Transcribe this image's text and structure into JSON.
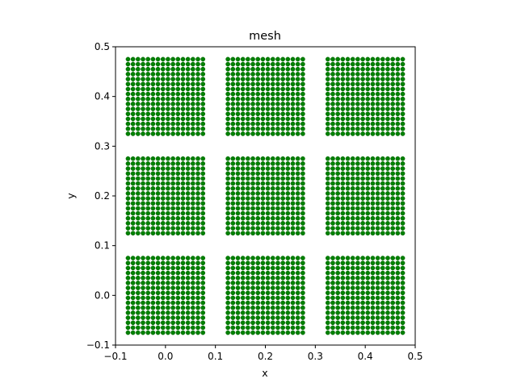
{
  "chart_data": {
    "type": "scatter",
    "title": "mesh",
    "xlabel": "x",
    "ylabel": "y",
    "xlim": [
      -0.1,
      0.5
    ],
    "ylim": [
      -0.1,
      0.5
    ],
    "xticks": [
      -0.1,
      0.0,
      0.1,
      0.2,
      0.3,
      0.4,
      0.5
    ],
    "yticks": [
      -0.1,
      0.0,
      0.1,
      0.2,
      0.3,
      0.4,
      0.5
    ],
    "xtick_labels": [
      "−0.1",
      "0.0",
      "0.1",
      "0.2",
      "0.3",
      "0.4",
      "0.5"
    ],
    "ytick_labels": [
      "−0.1",
      "0.0",
      "0.1",
      "0.2",
      "0.3",
      "0.4",
      "0.5"
    ],
    "grid": false,
    "marker_color": "#008000",
    "marker_edge_color": "#006400",
    "points_per_side": 16,
    "blocks": [
      {
        "x_range": [
          -0.075,
          0.075
        ],
        "y_range": [
          0.325,
          0.475
        ]
      },
      {
        "x_range": [
          0.125,
          0.275
        ],
        "y_range": [
          0.325,
          0.475
        ]
      },
      {
        "x_range": [
          0.325,
          0.475
        ],
        "y_range": [
          0.325,
          0.475
        ]
      },
      {
        "x_range": [
          -0.075,
          0.075
        ],
        "y_range": [
          0.125,
          0.275
        ]
      },
      {
        "x_range": [
          0.125,
          0.275
        ],
        "y_range": [
          0.125,
          0.275
        ]
      },
      {
        "x_range": [
          0.325,
          0.475
        ],
        "y_range": [
          0.125,
          0.275
        ]
      },
      {
        "x_range": [
          -0.075,
          0.075
        ],
        "y_range": [
          -0.075,
          0.075
        ]
      },
      {
        "x_range": [
          0.125,
          0.275
        ],
        "y_range": [
          -0.075,
          0.075
        ]
      },
      {
        "x_range": [
          0.325,
          0.475
        ],
        "y_range": [
          -0.075,
          0.075
        ]
      }
    ]
  }
}
